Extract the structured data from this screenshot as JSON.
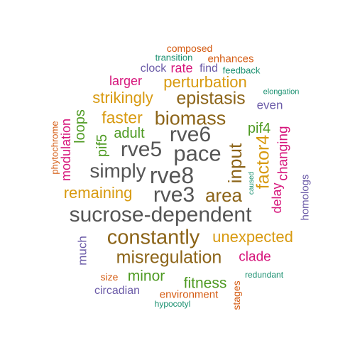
{
  "colors": {
    "gray": "#555555",
    "brown": "#8C6418",
    "gold": "#D89A10",
    "green": "#4E9A22",
    "magenta": "#D6157B",
    "purple": "#6B5BA8",
    "orange": "#D45A10",
    "teal": "#1A9070"
  },
  "words": [
    {
      "text": "sucrose-dependent",
      "color": "gray"
    },
    {
      "text": "rve8",
      "color": "gray"
    },
    {
      "text": "pace",
      "color": "gray"
    },
    {
      "text": "rve5",
      "color": "gray"
    },
    {
      "text": "rve6",
      "color": "gray"
    },
    {
      "text": "rve3",
      "color": "gray"
    },
    {
      "text": "simply",
      "color": "gray"
    },
    {
      "text": "constantly",
      "color": "brown"
    },
    {
      "text": "misregulation",
      "color": "brown"
    },
    {
      "text": "biomass",
      "color": "brown"
    },
    {
      "text": "epistasis",
      "color": "brown"
    },
    {
      "text": "area",
      "color": "brown"
    },
    {
      "text": "input",
      "color": "brown"
    },
    {
      "text": "factor4",
      "color": "gold"
    },
    {
      "text": "remaining",
      "color": "gold"
    },
    {
      "text": "unexpected",
      "color": "gold"
    },
    {
      "text": "perturbation",
      "color": "gold"
    },
    {
      "text": "strikingly",
      "color": "gold"
    },
    {
      "text": "faster",
      "color": "gold"
    },
    {
      "text": "adult",
      "color": "green"
    },
    {
      "text": "pif5",
      "color": "green"
    },
    {
      "text": "loops",
      "color": "green"
    },
    {
      "text": "pif4",
      "color": "green"
    },
    {
      "text": "minor",
      "color": "green"
    },
    {
      "text": "fitness",
      "color": "green"
    },
    {
      "text": "modulation",
      "color": "magenta"
    },
    {
      "text": "larger",
      "color": "magenta"
    },
    {
      "text": "rate",
      "color": "magenta"
    },
    {
      "text": "changing",
      "color": "magenta"
    },
    {
      "text": "delay",
      "color": "magenta"
    },
    {
      "text": "clade",
      "color": "magenta"
    },
    {
      "text": "clock",
      "color": "purple"
    },
    {
      "text": "find",
      "color": "purple"
    },
    {
      "text": "even",
      "color": "purple"
    },
    {
      "text": "homologs",
      "color": "purple"
    },
    {
      "text": "much",
      "color": "purple"
    },
    {
      "text": "circadian",
      "color": "purple"
    },
    {
      "text": "composed",
      "color": "orange"
    },
    {
      "text": "enhances",
      "color": "orange"
    },
    {
      "text": "phytochrome",
      "color": "orange"
    },
    {
      "text": "size",
      "color": "orange"
    },
    {
      "text": "environment",
      "color": "orange"
    },
    {
      "text": "stages",
      "color": "orange"
    },
    {
      "text": "transition",
      "color": "teal"
    },
    {
      "text": "feedback",
      "color": "teal"
    },
    {
      "text": "elongation",
      "color": "teal"
    },
    {
      "text": "caused",
      "color": "teal"
    },
    {
      "text": "redundant",
      "color": "teal"
    },
    {
      "text": "hypocotyl",
      "color": "teal"
    }
  ]
}
